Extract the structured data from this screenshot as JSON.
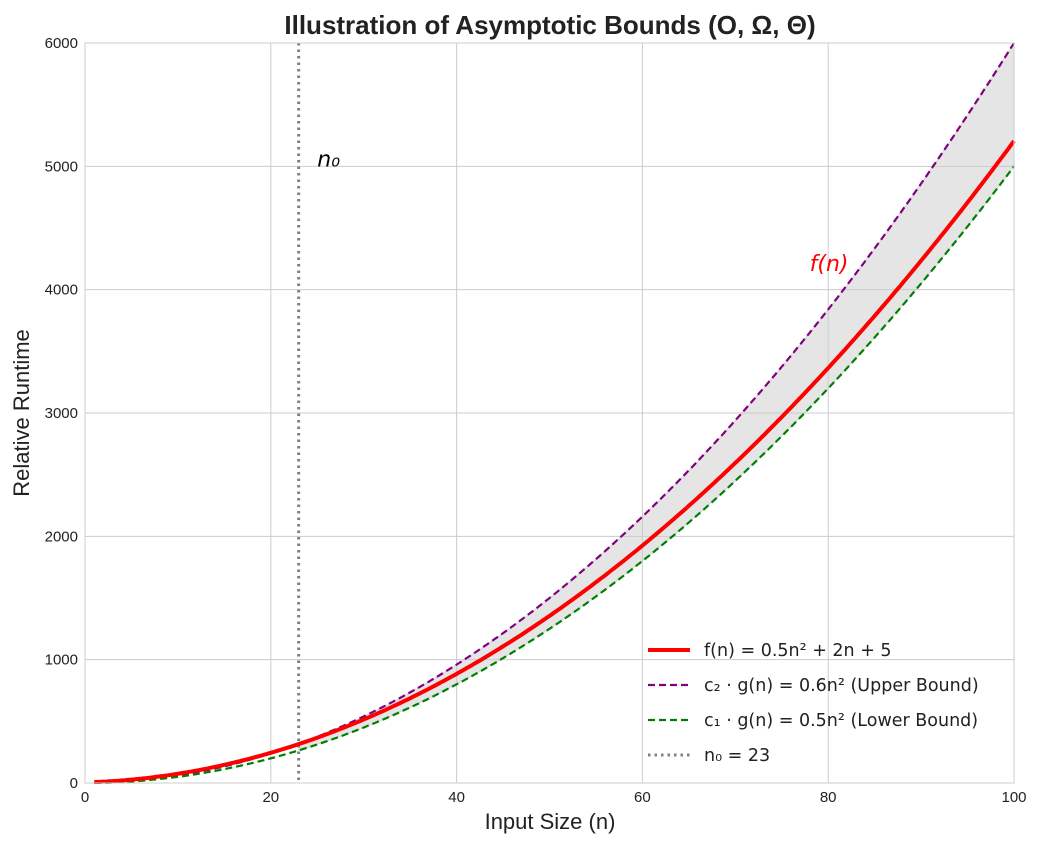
{
  "chart_data": {
    "type": "line",
    "title": "Illustration of Asymptotic Bounds (O, Ω, Θ)",
    "xlabel": "Input Size (n)",
    "ylabel": "Relative Runtime",
    "xlim": [
      0,
      100
    ],
    "ylim": [
      0,
      6000
    ],
    "xticks": [
      "0",
      "20",
      "40",
      "60",
      "80",
      "100"
    ],
    "yticks": [
      "0",
      "1000",
      "2000",
      "3000",
      "4000",
      "5000",
      "6000"
    ],
    "grid": true,
    "legend_position": "lower-right",
    "x_range": [
      1,
      100
    ],
    "series": [
      {
        "name": "f(n) = 0.5n² + 2n + 5",
        "coefficients": [
          0.5,
          2,
          5
        ],
        "color": "#ff0000",
        "style": "solid"
      },
      {
        "name": "c₂ · g(n) = 0.6n² (Upper Bound)",
        "coefficients": [
          0.6,
          0,
          0
        ],
        "color": "#800080",
        "style": "dashed"
      },
      {
        "name": "c₁ · g(n) = 0.5n² (Lower Bound)",
        "coefficients": [
          0.5,
          0,
          0
        ],
        "color": "#008000",
        "style": "dashed"
      },
      {
        "name": "n₀ = 23",
        "vertical_x": 23,
        "color": "#808080",
        "style": "dotted"
      }
    ],
    "shaded_region": {
      "between": [
        "c₁ · g(n) = 0.5n² (Lower Bound)",
        "c₂ · g(n) = 0.6n² (Upper Bound)"
      ],
      "from_x": 23,
      "color": "#cccccc"
    },
    "annotations": [
      {
        "text": "n₀",
        "x": 25,
        "y": 5000,
        "color": "#000000"
      },
      {
        "text": "f(n)",
        "x": 78,
        "y": 4150,
        "color": "#ff0000"
      }
    ]
  }
}
